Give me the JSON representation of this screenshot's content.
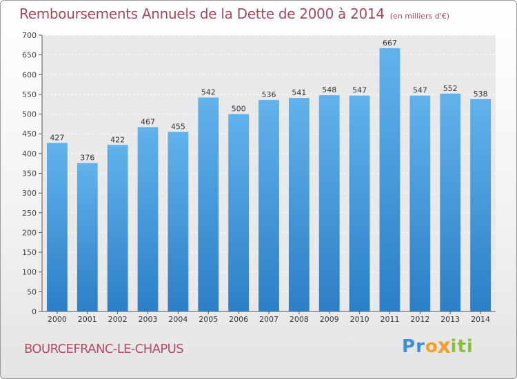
{
  "chart_data": {
    "type": "bar",
    "title": "Remboursements Annuels de la Dette de 2000 à 2014",
    "unit": "(en milliers d'€)",
    "categories": [
      "2000",
      "2001",
      "2002",
      "2003",
      "2004",
      "2005",
      "2006",
      "2007",
      "2008",
      "2009",
      "2010",
      "2011",
      "2012",
      "2013",
      "2014"
    ],
    "values": [
      427,
      376,
      422,
      467,
      455,
      542,
      500,
      536,
      541,
      548,
      547,
      667,
      547,
      552,
      538
    ],
    "ylim": [
      0,
      700
    ],
    "yticks": [
      0,
      50,
      100,
      150,
      200,
      250,
      300,
      350,
      400,
      450,
      500,
      550,
      600,
      650,
      700
    ],
    "grid": true,
    "xlabel": "",
    "ylabel": "",
    "bar_color": "#4a9fe0"
  },
  "commune": "BOURCEFRANC-LE-CHAPUS",
  "logo": {
    "letters": [
      "P",
      "r",
      "o",
      "x",
      "i",
      "t",
      "i"
    ],
    "colors": [
      "#3b8fd6",
      "#3b8fd6",
      "#f2a02b",
      "#f2a02b",
      "#8bbf3a",
      "#8bbf3a",
      "#8bbf3a"
    ]
  }
}
